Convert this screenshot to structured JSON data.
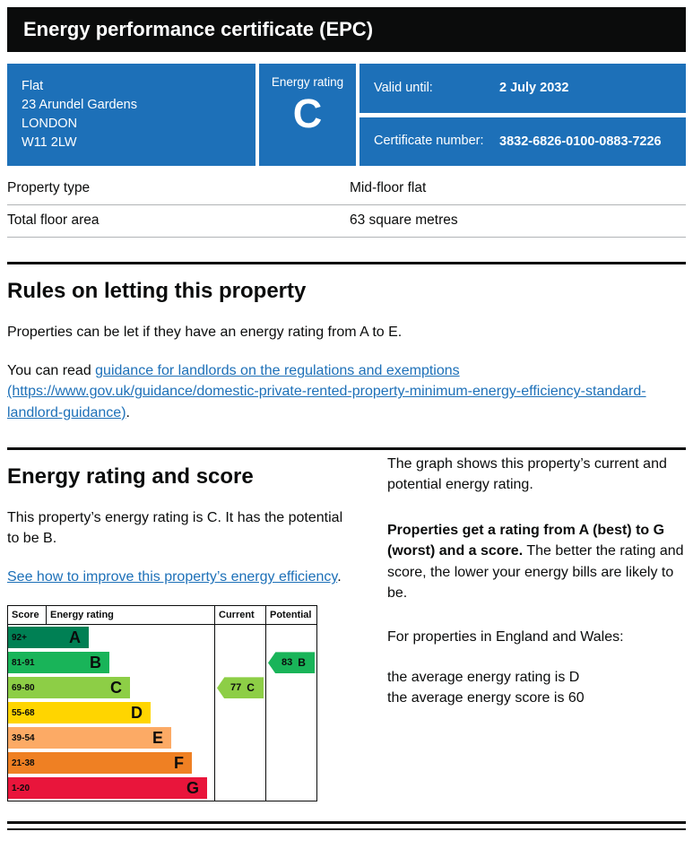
{
  "colors": {
    "masthead_bg": "#0b0c0c",
    "box_blue": "#1d70b8",
    "link_blue": "#1d70b8",
    "text": "#0b0c0c"
  },
  "header": {
    "title": "Energy performance certificate (EPC)"
  },
  "summary": {
    "address_line1": "Flat",
    "address_line2": "23 Arundel Gardens",
    "address_line3": "LONDON",
    "address_line4": "W11 2LW",
    "energy_rating_label": "Energy rating",
    "energy_rating": "C",
    "valid_until_label": "Valid until:",
    "valid_until_value": "2 July 2032",
    "certificate_number_label": "Certificate number:",
    "certificate_number_value": "3832-6826-0100-0883-7226"
  },
  "property_details": {
    "rows": [
      {
        "label": "Property type",
        "value": "Mid-floor flat"
      },
      {
        "label": "Total floor area",
        "value": "63 square metres"
      }
    ]
  },
  "rules_section": {
    "heading": "Rules on letting this property",
    "paragraph1": "Properties can be let if they have an energy rating from A to E.",
    "read_prefix": "You can read ",
    "link_text": "guidance for landlords on the regulations and exemptions (https://www.gov.uk/guidance/domestic-private-rented-property-minimum-energy-efficiency-standard-landlord-guidance)",
    "read_suffix": "."
  },
  "rating_section": {
    "heading": "Energy rating and score",
    "intro": "This property’s energy rating is C. It has the potential to be B.",
    "improve_link_text": "See how to improve this property’s energy efficiency",
    "improve_suffix": ".",
    "right_para1": "The graph shows this property’s current and potential energy rating.",
    "right_para2_bold": "Properties get a rating from A (best) to G (worst) and a score.",
    "right_para2_rest": " The better the rating and score, the lower your energy bills are likely to be.",
    "right_para3": "For properties in England and Wales:",
    "avg_rating_line": "the average energy rating is D",
    "avg_score_line": "the average energy score is 60"
  },
  "chart_data": {
    "type": "epc-bands",
    "columns": [
      "Score",
      "Energy rating",
      "Current",
      "Potential"
    ],
    "bands": [
      {
        "score": "92+",
        "letter": "A",
        "color": "#008054"
      },
      {
        "score": "81-91",
        "letter": "B",
        "color": "#19b459"
      },
      {
        "score": "69-80",
        "letter": "C",
        "color": "#8dce46"
      },
      {
        "score": "55-68",
        "letter": "D",
        "color": "#ffd500"
      },
      {
        "score": "39-54",
        "letter": "E",
        "color": "#fcaa65"
      },
      {
        "score": "21-38",
        "letter": "F",
        "color": "#ef8023"
      },
      {
        "score": "1-20",
        "letter": "G",
        "color": "#e9153b"
      }
    ],
    "current": {
      "score": "77",
      "letter": "C",
      "color": "#8dce46",
      "band_index": 2
    },
    "potential": {
      "score": "83",
      "letter": "B",
      "color": "#19b459",
      "band_index": 1
    }
  }
}
